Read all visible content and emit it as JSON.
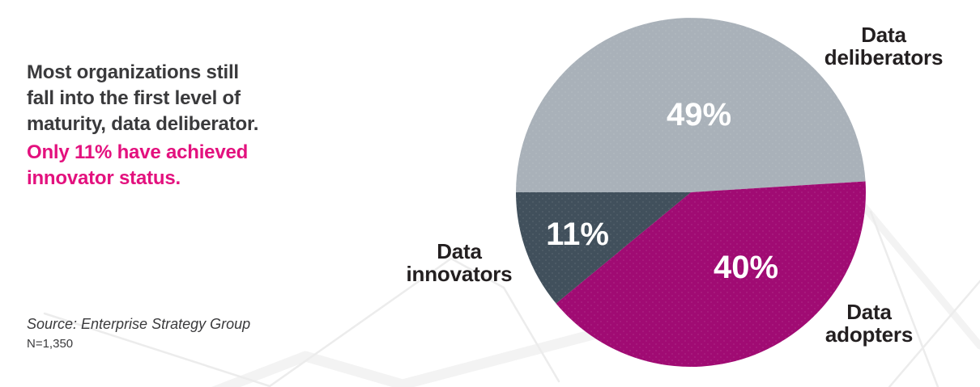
{
  "page": {
    "background_color": "#ffffff"
  },
  "headline": {
    "dark_lines": [
      "Most organizations still",
      "fall into the first level of",
      "maturity, data deliberator."
    ],
    "pink_lines": [
      "Only 11% have achieved",
      "innovator status."
    ],
    "dark_color": "#3a3a3c",
    "pink_color": "#e3117e"
  },
  "footnote": {
    "source_text": "Source: Enterprise Strategy Group",
    "sample_text": "N=1,350"
  },
  "chart_data": {
    "type": "pie",
    "title": "",
    "start_angle_deg": 180,
    "direction": "clockwise",
    "value_label_color": "#ffffff",
    "slice_label_color": "#231f20",
    "slices": [
      {
        "label": "Data deliberators",
        "label_lines": [
          "Data",
          "deliberators"
        ],
        "value": 49,
        "pct_label": "49%",
        "color": "#a9b1b9"
      },
      {
        "label": "Data adopters",
        "label_lines": [
          "Data",
          "adopters"
        ],
        "value": 40,
        "pct_label": "40%",
        "color": "#a00b73"
      },
      {
        "label": "Data innovators",
        "label_lines": [
          "Data",
          "innovators"
        ],
        "value": 11,
        "pct_label": "11%",
        "color": "#41505c"
      }
    ],
    "source": "Enterprise Strategy Group",
    "sample_size": "N=1,350"
  }
}
